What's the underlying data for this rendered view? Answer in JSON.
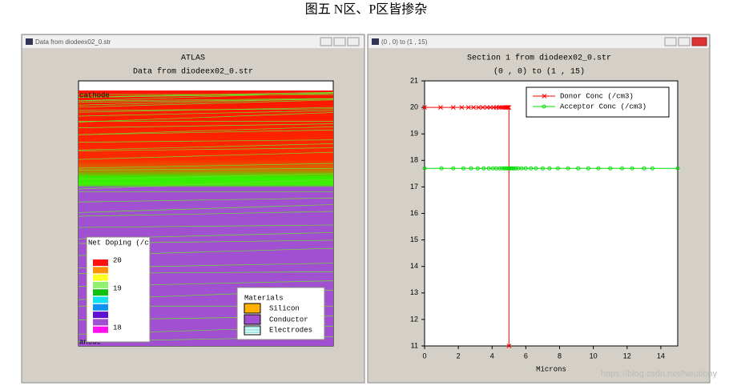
{
  "caption": "图五 N区、P区皆掺杂",
  "watermark": "https://blog.csdn.net/Neutiony",
  "left_window": {
    "title_bar": "Data from diodeex02_0.str",
    "title": "ATLAS",
    "subtitle": "Data from diodeex02_0.str",
    "labels": [
      "cathode",
      "anode"
    ],
    "doping_legend": {
      "title": "Net Doping (/c",
      "ticks": [
        20,
        19,
        18
      ]
    },
    "materials_legend": {
      "title": "Materials",
      "items": [
        "Silicon",
        "Conductor",
        "Electrodes"
      ]
    }
  },
  "right_window": {
    "title_bar": "(0 , 0) to (1 , 15)"
  },
  "chart_data": {
    "type": "line",
    "title": "Section 1 from diodeex02_0.str",
    "subtitle": "(0 , 0) to (1 , 15)",
    "x_label": "Microns",
    "xlim": [
      0,
      15
    ],
    "xticks": [
      0,
      2,
      4,
      6,
      8,
      10,
      12,
      14
    ],
    "ylim": [
      11,
      21
    ],
    "yticks": [
      11,
      12,
      13,
      14,
      15,
      16,
      17,
      18,
      19,
      20,
      21
    ],
    "legend": "top-right",
    "series": [
      {
        "name": "Donor Conc (/cm3)",
        "color": "#ff0000",
        "marker": "x",
        "x": [
          0,
          0.95,
          1.7,
          2.2,
          2.6,
          2.9,
          3.2,
          3.45,
          3.7,
          3.9,
          4.1,
          4.25,
          4.4,
          4.5,
          4.6,
          4.7,
          4.78,
          4.85,
          4.9,
          4.95,
          5,
          5
        ],
        "values": [
          20,
          20,
          20,
          20,
          20,
          20,
          20,
          20,
          20,
          20,
          20,
          20,
          20,
          20,
          20,
          20,
          20,
          20,
          20,
          20,
          20,
          11
        ]
      },
      {
        "name": "Acceptor Conc (/cm3)",
        "color": "#00dd00",
        "marker": "o",
        "x": [
          0,
          1,
          1.7,
          2.3,
          2.75,
          3.15,
          3.5,
          3.8,
          4.05,
          4.25,
          4.45,
          4.6,
          4.72,
          4.82,
          4.9,
          4.97,
          5.03,
          5.1,
          5.18,
          5.28,
          5.4,
          5.55,
          5.75,
          6.0,
          6.3,
          6.6,
          7.0,
          7.4,
          7.9,
          8.5,
          9.1,
          9.7,
          10.3,
          11.0,
          11.7,
          12.3,
          13.0,
          13.5,
          15
        ],
        "values": [
          17.7,
          17.7,
          17.7,
          17.7,
          17.7,
          17.7,
          17.7,
          17.7,
          17.7,
          17.7,
          17.7,
          17.7,
          17.7,
          17.7,
          17.7,
          17.7,
          17.7,
          17.7,
          17.7,
          17.7,
          17.7,
          17.7,
          17.7,
          17.7,
          17.7,
          17.7,
          17.7,
          17.7,
          17.7,
          17.7,
          17.7,
          17.7,
          17.7,
          17.7,
          17.7,
          17.7,
          17.7,
          17.7,
          17.7
        ]
      }
    ]
  }
}
